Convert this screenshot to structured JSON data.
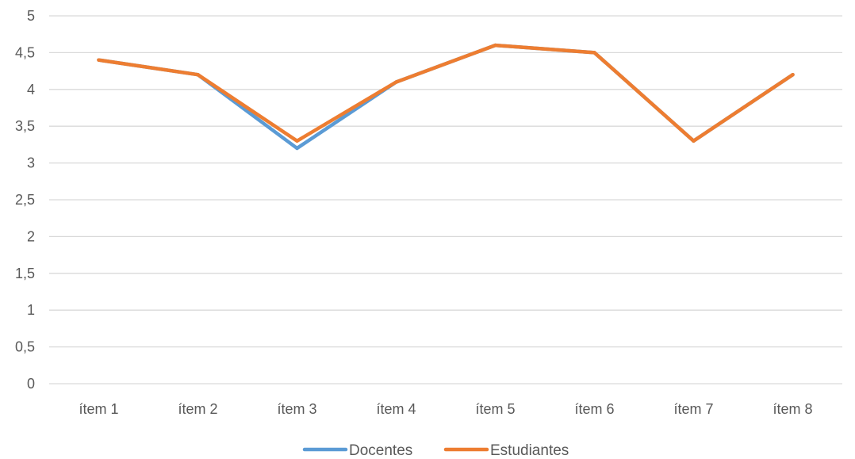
{
  "chart_data": {
    "type": "line",
    "categories": [
      "ítem 1",
      "ítem 2",
      "ítem 3",
      "ítem 4",
      "ítem 5",
      "ítem 6",
      "ítem 7",
      "ítem 8"
    ],
    "series": [
      {
        "name": "Docentes",
        "color": "#5B9BD5",
        "values": [
          4.4,
          4.2,
          3.2,
          4.1,
          4.6,
          4.5,
          3.3,
          4.2
        ]
      },
      {
        "name": "Estudiantes",
        "color": "#ED7D31",
        "values": [
          4.4,
          4.2,
          3.3,
          4.1,
          4.6,
          4.5,
          3.3,
          4.2
        ]
      }
    ],
    "ylim": [
      0,
      5
    ],
    "yticks": [
      "0",
      "0,5",
      "1",
      "1,5",
      "2",
      "2,5",
      "3",
      "3,5",
      "4",
      "4,5",
      "5"
    ],
    "grid": true,
    "legend_position": "bottom",
    "gridline_color": "#D9D9D9",
    "text_color": "#595959"
  }
}
